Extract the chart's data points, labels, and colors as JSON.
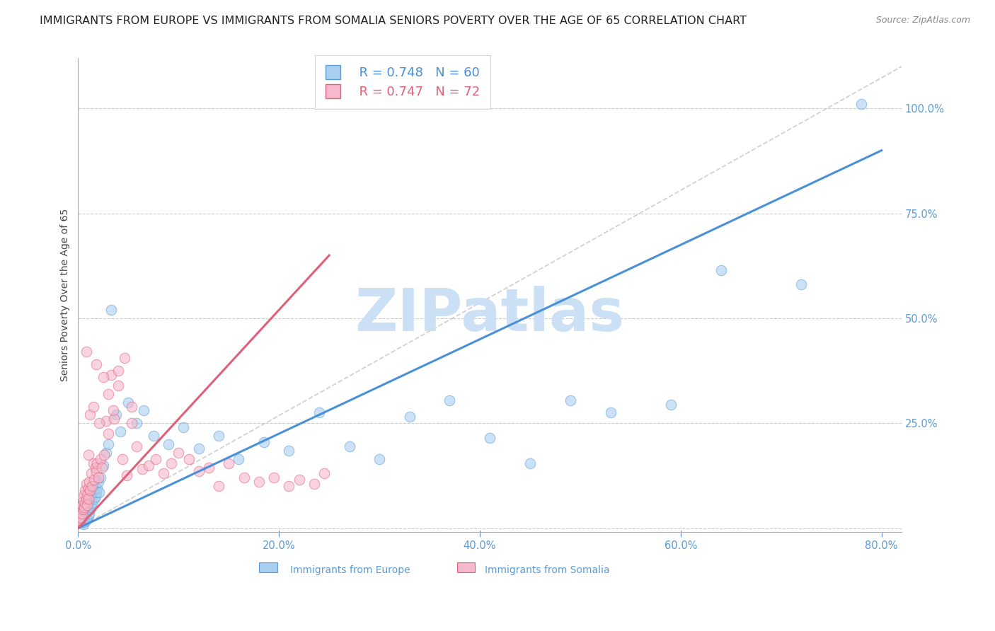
{
  "title": "IMMIGRANTS FROM EUROPE VS IMMIGRANTS FROM SOMALIA SENIORS POVERTY OVER THE AGE OF 65 CORRELATION CHART",
  "source": "Source: ZipAtlas.com",
  "ylabel": "Seniors Poverty Over the Age of 65",
  "legend_europe": "Immigrants from Europe",
  "legend_somalia": "Immigrants from Somalia",
  "R_europe": 0.748,
  "N_europe": 60,
  "R_somalia": 0.747,
  "N_somalia": 72,
  "color_europe_fill": "#a8cef0",
  "color_europe_edge": "#5b9bd5",
  "color_somalia_fill": "#f5b8cc",
  "color_somalia_edge": "#e0607a",
  "color_europe_line": "#4a90d9",
  "color_somalia_line": "#e0607a",
  "color_axis_text": "#5b9bd5",
  "xmin": 0.0,
  "xmax": 0.82,
  "ymin": -0.01,
  "ymax": 1.12,
  "xticks": [
    0.0,
    0.2,
    0.4,
    0.6,
    0.8
  ],
  "xtick_labels": [
    "0.0%",
    "",
    "",
    "",
    "80.0%"
  ],
  "yticks": [
    0.0,
    0.25,
    0.5,
    0.75,
    1.0
  ],
  "ytick_labels": [
    "",
    "25.0%",
    "50.0%",
    "75.0%",
    "100.0%"
  ],
  "watermark": "ZIPatlas",
  "watermark_color": "#cce0f5",
  "background_color": "#ffffff",
  "grid_color": "#cccccc",
  "ref_line_color": "#cccccc",
  "title_fontsize": 11.5,
  "axis_label_fontsize": 10,
  "tick_fontsize": 10.5,
  "legend_fontsize": 13,
  "europe_line_x0": 0.0,
  "europe_line_y0": 0.0,
  "europe_line_x1": 0.8,
  "europe_line_y1": 0.9,
  "somalia_line_x0": 0.0,
  "somalia_line_y0": 0.0,
  "somalia_line_x1": 0.25,
  "somalia_line_y1": 0.65,
  "ref_line_x0": 0.0,
  "ref_line_y0": 0.0,
  "ref_line_x1": 0.82,
  "ref_line_y1": 1.1,
  "europe_x": [
    0.003,
    0.004,
    0.005,
    0.005,
    0.006,
    0.006,
    0.007,
    0.007,
    0.008,
    0.008,
    0.009,
    0.009,
    0.01,
    0.01,
    0.011,
    0.011,
    0.012,
    0.012,
    0.013,
    0.013,
    0.014,
    0.015,
    0.016,
    0.016,
    0.017,
    0.018,
    0.019,
    0.02,
    0.021,
    0.022,
    0.025,
    0.028,
    0.03,
    0.033,
    0.038,
    0.042,
    0.05,
    0.058,
    0.065,
    0.075,
    0.09,
    0.105,
    0.12,
    0.14,
    0.16,
    0.185,
    0.21,
    0.24,
    0.27,
    0.3,
    0.33,
    0.37,
    0.41,
    0.45,
    0.49,
    0.53,
    0.59,
    0.64,
    0.72,
    0.78
  ],
  "europe_y": [
    0.02,
    0.015,
    0.025,
    0.01,
    0.02,
    0.015,
    0.025,
    0.03,
    0.02,
    0.035,
    0.025,
    0.04,
    0.03,
    0.05,
    0.035,
    0.06,
    0.045,
    0.07,
    0.05,
    0.08,
    0.06,
    0.09,
    0.07,
    0.1,
    0.075,
    0.085,
    0.095,
    0.11,
    0.085,
    0.12,
    0.15,
    0.18,
    0.2,
    0.52,
    0.27,
    0.23,
    0.3,
    0.25,
    0.28,
    0.22,
    0.2,
    0.24,
    0.19,
    0.22,
    0.165,
    0.205,
    0.185,
    0.275,
    0.195,
    0.165,
    0.265,
    0.305,
    0.215,
    0.155,
    0.305,
    0.275,
    0.295,
    0.615,
    0.58,
    1.01
  ],
  "somalia_x": [
    0.001,
    0.001,
    0.002,
    0.002,
    0.003,
    0.003,
    0.004,
    0.004,
    0.005,
    0.005,
    0.006,
    0.006,
    0.007,
    0.007,
    0.008,
    0.008,
    0.009,
    0.009,
    0.01,
    0.01,
    0.011,
    0.012,
    0.013,
    0.014,
    0.015,
    0.016,
    0.017,
    0.018,
    0.019,
    0.02,
    0.022,
    0.024,
    0.026,
    0.028,
    0.03,
    0.033,
    0.036,
    0.04,
    0.044,
    0.048,
    0.053,
    0.058,
    0.064,
    0.07,
    0.077,
    0.085,
    0.093,
    0.1,
    0.11,
    0.12,
    0.13,
    0.14,
    0.15,
    0.165,
    0.18,
    0.195,
    0.21,
    0.22,
    0.235,
    0.245,
    0.008,
    0.01,
    0.012,
    0.015,
    0.018,
    0.021,
    0.025,
    0.03,
    0.035,
    0.04,
    0.046,
    0.053
  ],
  "somalia_y": [
    0.015,
    0.025,
    0.02,
    0.035,
    0.025,
    0.045,
    0.035,
    0.055,
    0.045,
    0.065,
    0.05,
    0.08,
    0.06,
    0.09,
    0.07,
    0.105,
    0.08,
    0.055,
    0.095,
    0.07,
    0.11,
    0.09,
    0.13,
    0.1,
    0.155,
    0.115,
    0.145,
    0.135,
    0.155,
    0.12,
    0.165,
    0.145,
    0.175,
    0.255,
    0.32,
    0.365,
    0.26,
    0.375,
    0.165,
    0.125,
    0.25,
    0.195,
    0.14,
    0.15,
    0.165,
    0.13,
    0.155,
    0.18,
    0.165,
    0.135,
    0.145,
    0.1,
    0.155,
    0.12,
    0.11,
    0.12,
    0.1,
    0.115,
    0.105,
    0.13,
    0.42,
    0.175,
    0.27,
    0.29,
    0.39,
    0.25,
    0.36,
    0.225,
    0.28,
    0.34,
    0.405,
    0.29
  ]
}
